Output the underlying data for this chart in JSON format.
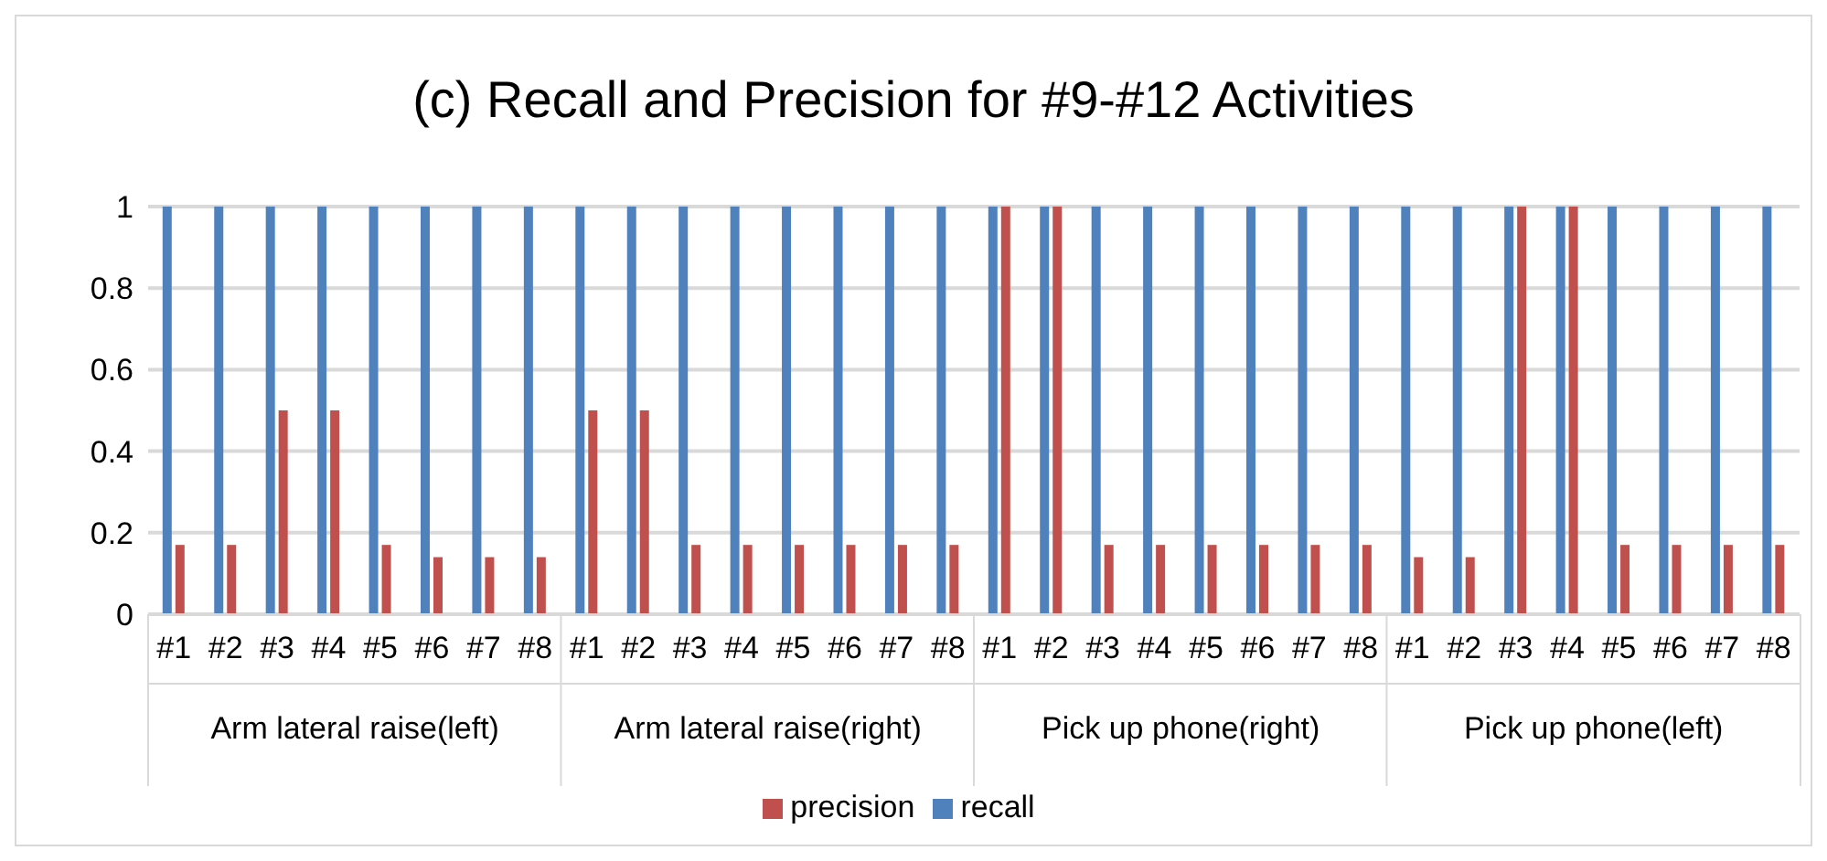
{
  "chart_data": {
    "type": "bar",
    "title": "(c) Recall and Precision for #9-#12 Activities",
    "categories": [
      "#1",
      "#2",
      "#3",
      "#4",
      "#5",
      "#6",
      "#7",
      "#8",
      "#1",
      "#2",
      "#3",
      "#4",
      "#5",
      "#6",
      "#7",
      "#8",
      "#1",
      "#2",
      "#3",
      "#4",
      "#5",
      "#6",
      "#7",
      "#8",
      "#1",
      "#2",
      "#3",
      "#4",
      "#5",
      "#6",
      "#7",
      "#8"
    ],
    "annotations": [
      "Arm lateral raise(left)",
      "Arm lateral raise(right)",
      "Pick up phone(right)",
      "Pick up phone(left)"
    ],
    "series": [
      {
        "name": "recall",
        "color": "#4f81bd",
        "values": [
          1,
          1,
          1,
          1,
          1,
          1,
          1,
          1,
          1,
          1,
          1,
          1,
          1,
          1,
          1,
          1,
          1,
          1,
          1,
          1,
          1,
          1,
          1,
          1,
          1,
          1,
          1,
          1,
          1,
          1,
          1,
          1
        ]
      },
      {
        "name": "precision",
        "color": "#c0504d",
        "values": [
          0.17,
          0.17,
          0.5,
          0.5,
          0.17,
          0.14,
          0.14,
          0.14,
          0.5,
          0.5,
          0.17,
          0.17,
          0.17,
          0.17,
          0.17,
          0.17,
          1,
          1,
          0.17,
          0.17,
          0.17,
          0.17,
          0.17,
          0.17,
          0.14,
          0.14,
          1,
          1,
          0.17,
          0.17,
          0.17,
          0.17
        ]
      }
    ],
    "ylim": [
      0,
      1
    ],
    "yticks": [
      0,
      0.2,
      0.4,
      0.6,
      0.8,
      1
    ],
    "grid": "y",
    "legend": "bottom"
  }
}
